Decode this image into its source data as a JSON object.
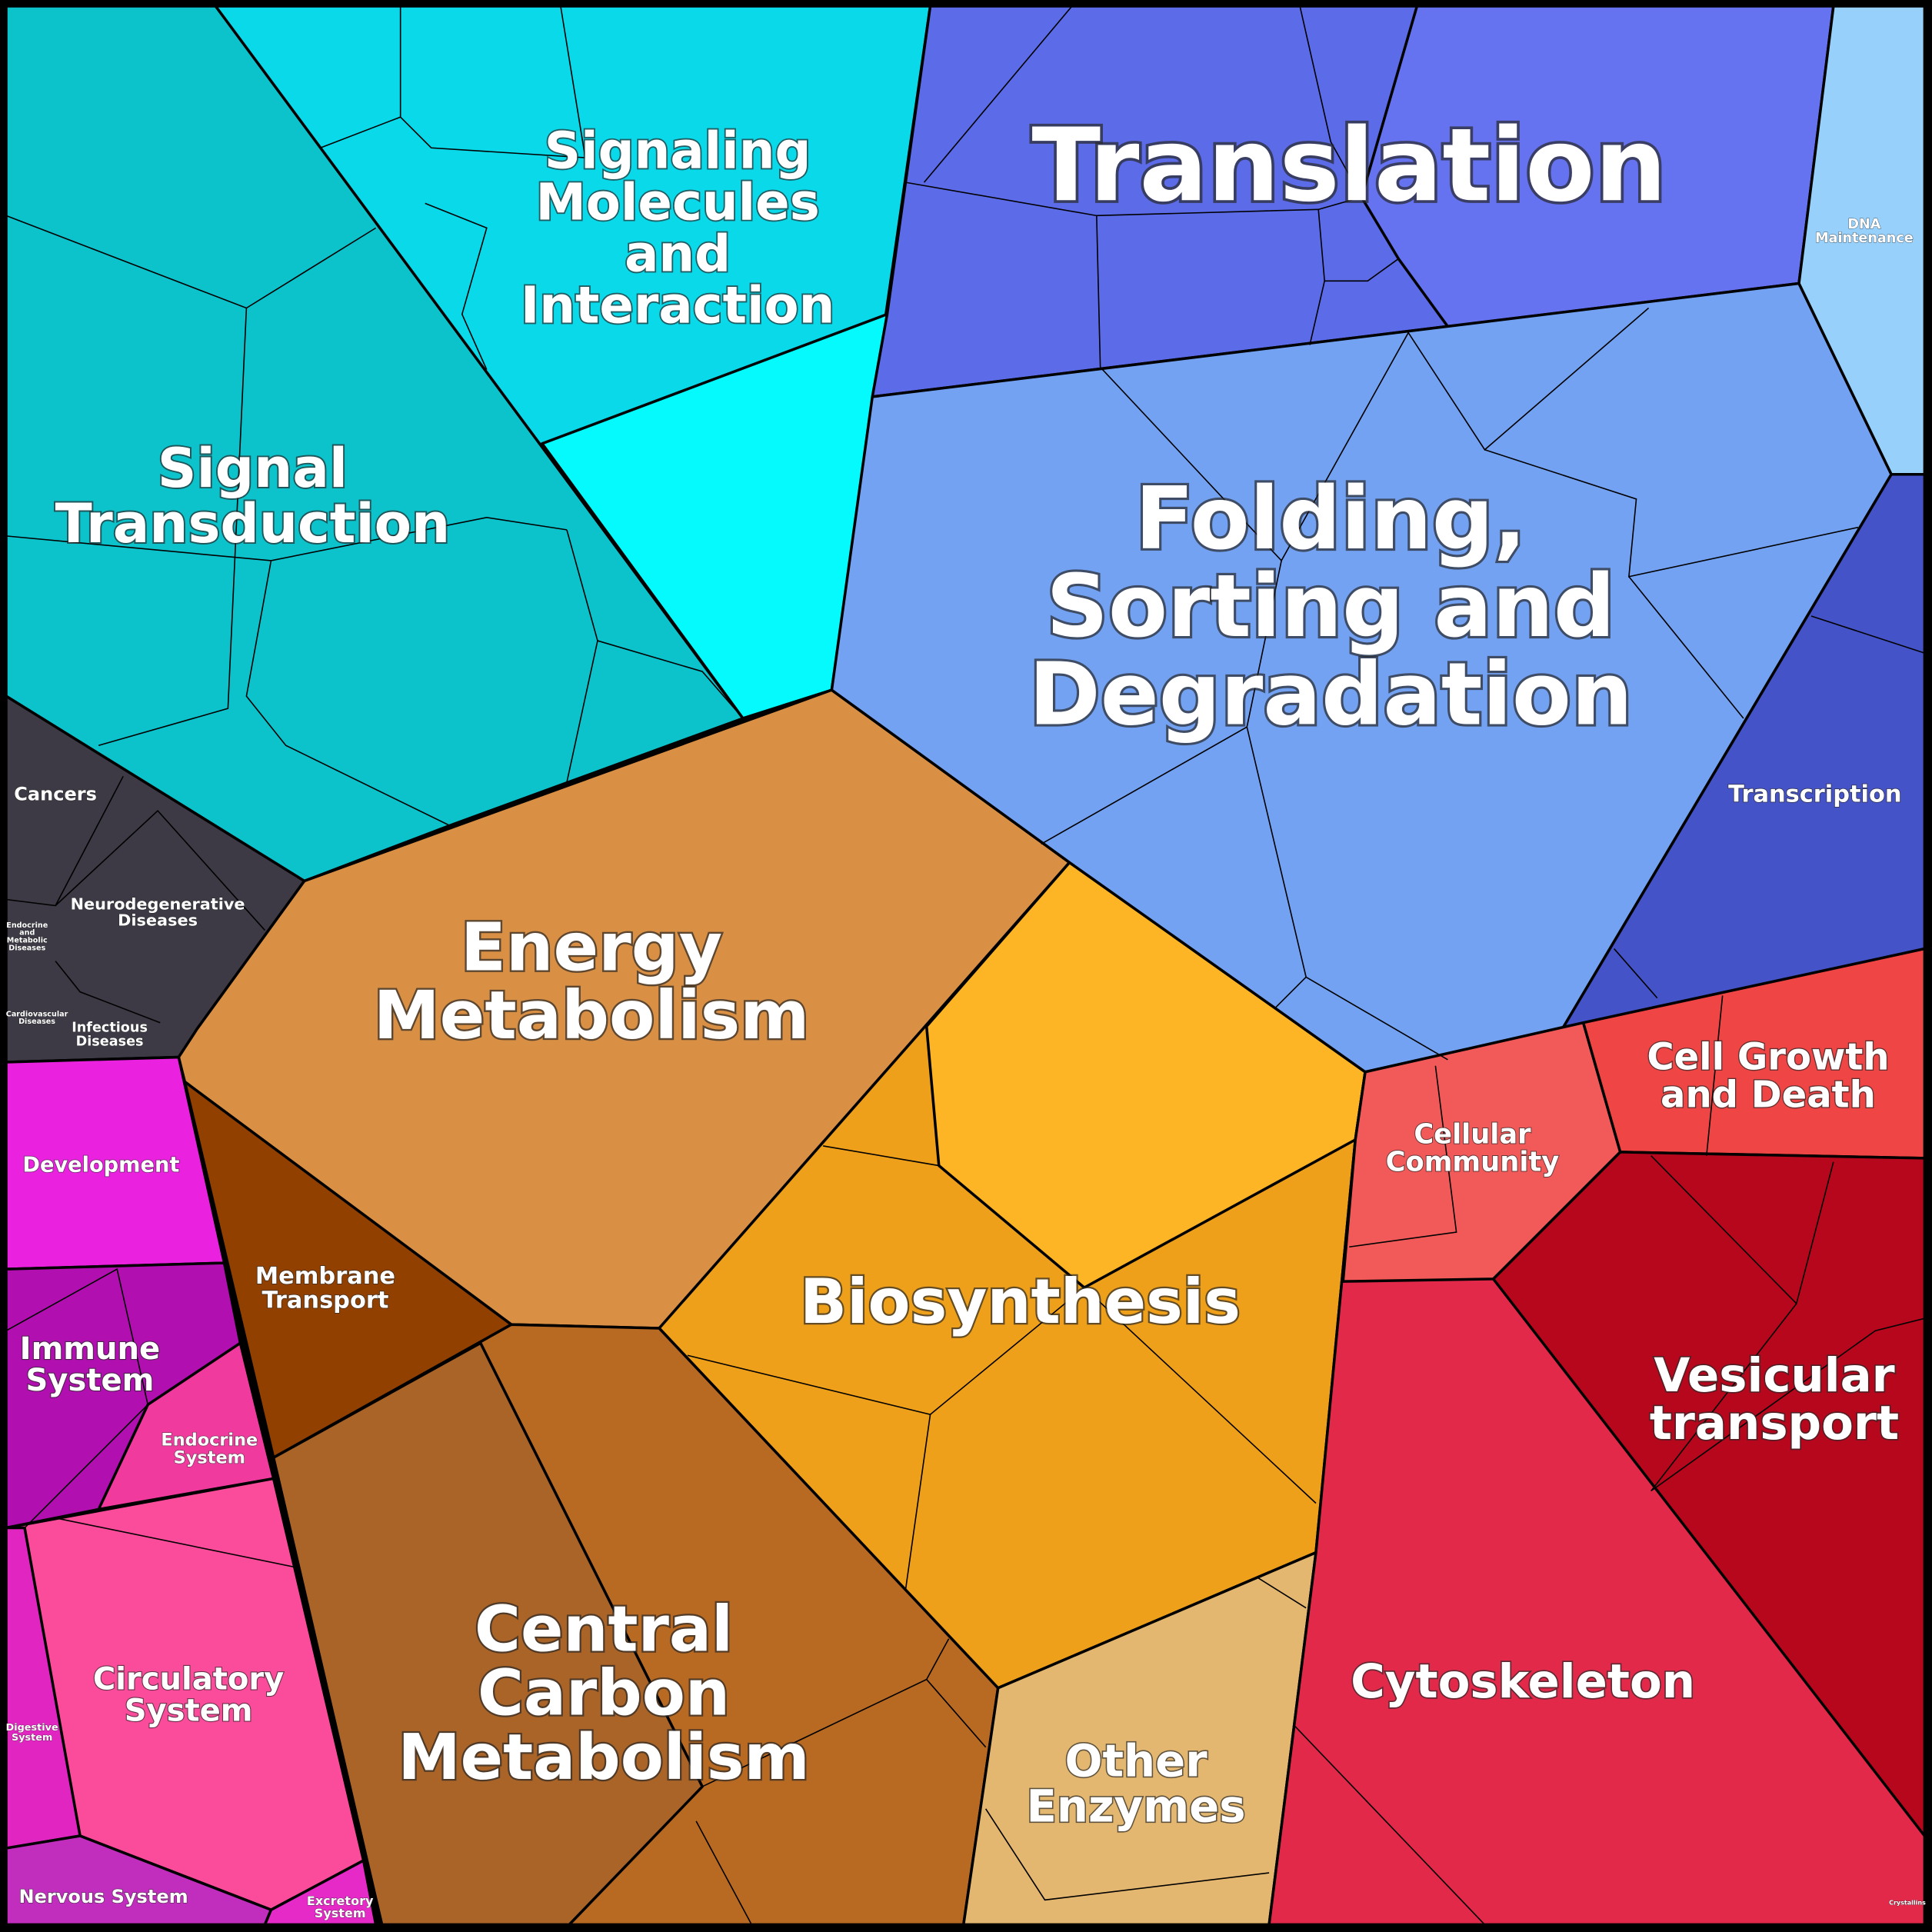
{
  "regions": [
    {
      "lines": [
        "Translation"
      ]
    },
    {
      "lines": [
        "Folding,",
        "Sorting and",
        "Degradation"
      ]
    },
    {
      "lines": [
        "Signal",
        "Transduction"
      ]
    },
    {
      "lines": [
        "Signaling",
        "Molecules",
        "and",
        "Interaction"
      ]
    },
    {
      "lines": [
        "Energy",
        "Metabolism"
      ]
    },
    {
      "lines": [
        "Biosynthesis"
      ]
    },
    {
      "lines": [
        "Central",
        "Carbon",
        "Metabolism"
      ]
    },
    {
      "lines": [
        "Other",
        "Enzymes"
      ]
    },
    {
      "lines": [
        "Cytoskeleton"
      ]
    },
    {
      "lines": [
        "Vesicular",
        "transport"
      ]
    },
    {
      "lines": [
        "Cell Growth",
        "and Death"
      ]
    },
    {
      "lines": [
        "Cellular",
        "Community"
      ]
    },
    {
      "lines": [
        "Transcription"
      ]
    },
    {
      "lines": [
        "DNA",
        "Maintenance"
      ]
    },
    {
      "lines": [
        "Membrane",
        "Transport"
      ]
    },
    {
      "lines": [
        "Development"
      ]
    },
    {
      "lines": [
        "Immune",
        "System"
      ]
    },
    {
      "lines": [
        "Endocrine",
        "System"
      ]
    },
    {
      "lines": [
        "Circulatory",
        "System"
      ]
    },
    {
      "lines": [
        "Nervous System"
      ]
    },
    {
      "lines": [
        "Excretory",
        "System"
      ]
    },
    {
      "lines": [
        "Digestive",
        "System"
      ]
    },
    {
      "lines": [
        "Cancers"
      ]
    },
    {
      "lines": [
        "Neurodegenerative",
        "Diseases"
      ]
    },
    {
      "lines": [
        "Infectious",
        "Diseases"
      ]
    },
    {
      "lines": [
        "Endocrine",
        "and",
        "Metabolic",
        "Diseases"
      ]
    },
    {
      "lines": [
        "Cardiovascular",
        "Diseases"
      ]
    },
    {
      "lines": [
        "Crystallins"
      ]
    }
  ]
}
